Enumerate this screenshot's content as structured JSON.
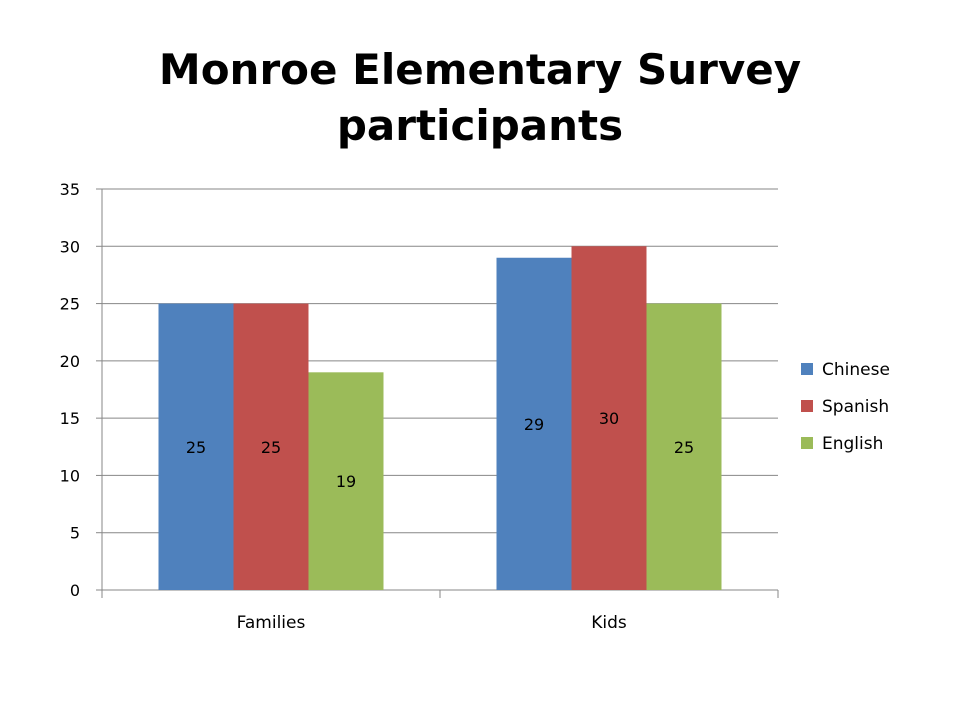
{
  "chart_data": {
    "type": "bar",
    "title_lines": [
      "Monroe Elementary Survey",
      "participants"
    ],
    "categories": [
      "Families",
      "Kids"
    ],
    "series": [
      {
        "name": "Chinese",
        "color": "#4F81BD",
        "values": [
          25,
          29
        ]
      },
      {
        "name": "Spanish",
        "color": "#C0504D",
        "values": [
          25,
          30
        ]
      },
      {
        "name": "English",
        "color": "#9BBB59",
        "values": [
          19,
          25
        ]
      }
    ],
    "ylim": [
      0,
      35
    ],
    "yticks": [
      "0",
      "5",
      "10",
      "15",
      "20",
      "25",
      "30",
      "35"
    ],
    "gridlines": true,
    "legend_position": "right",
    "data_labels": true
  }
}
